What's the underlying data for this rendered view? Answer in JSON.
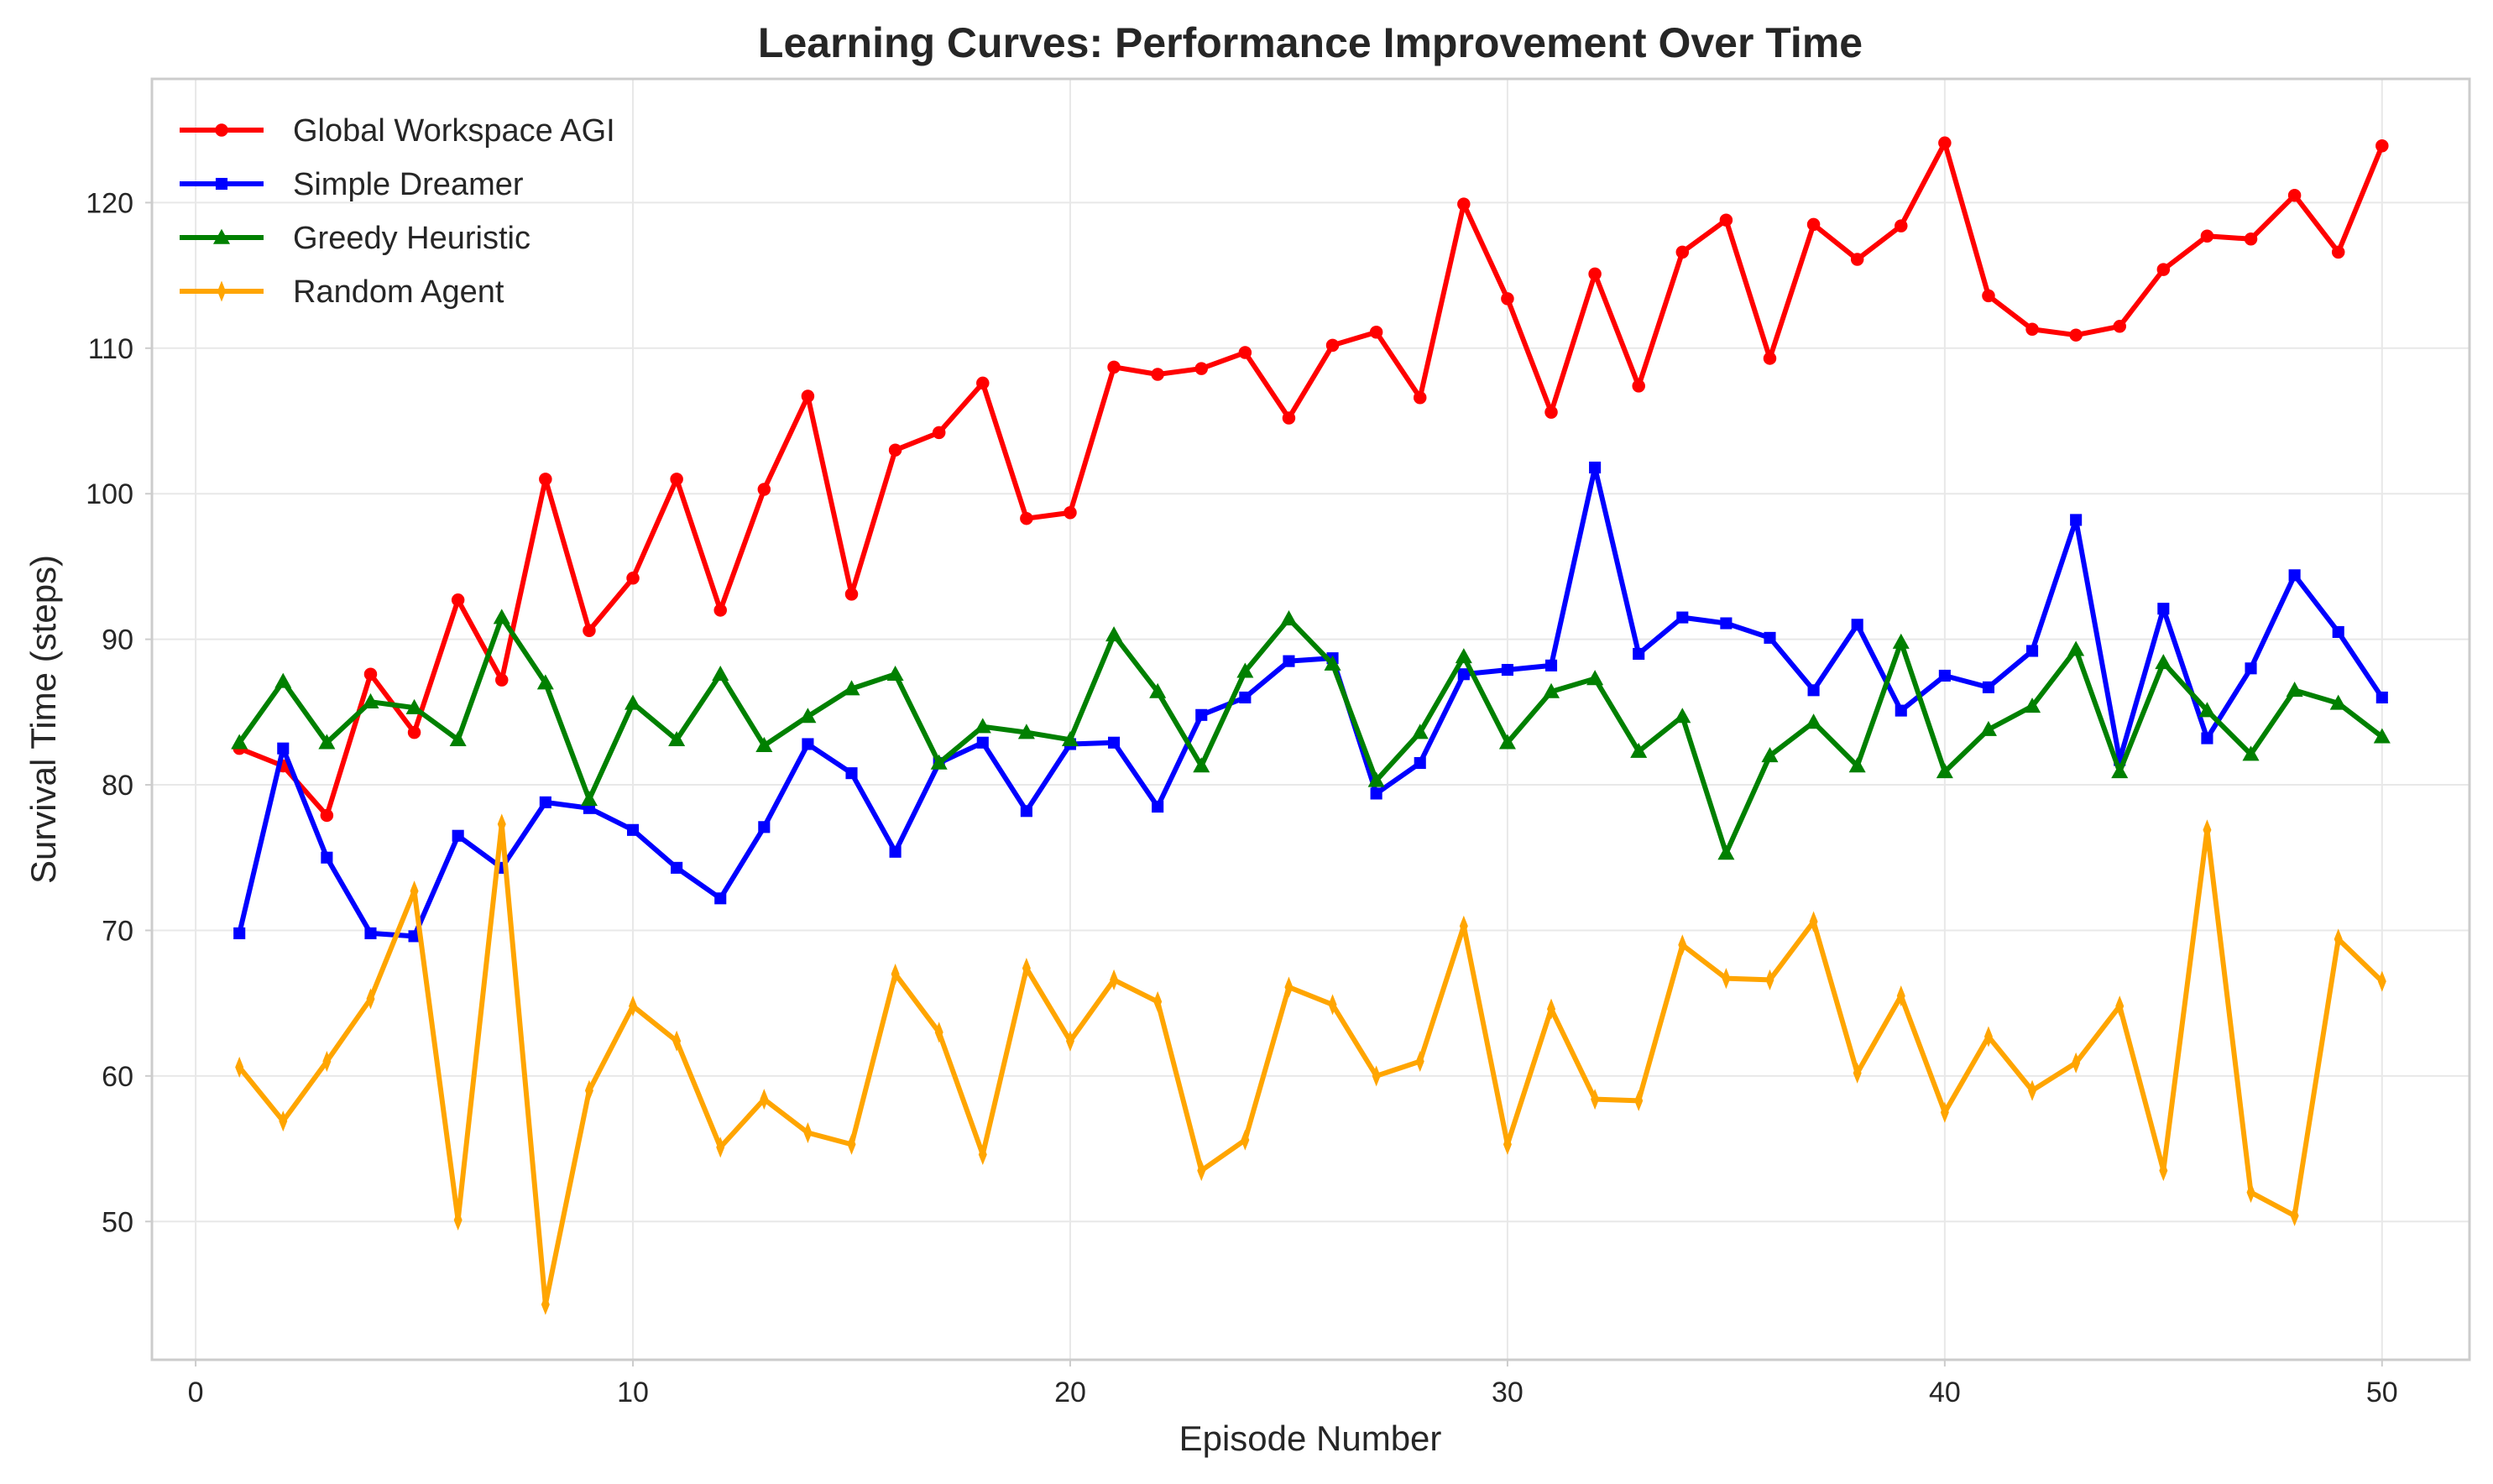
{
  "chart_data": {
    "type": "line",
    "title": "Learning Curves: Performance Improvement Over Time",
    "xlabel": "Episode Number",
    "ylabel": "Survival Time (steps)",
    "xlim": [
      -1,
      52
    ],
    "ylim": [
      40.5,
      128.5
    ],
    "xticks": [
      0,
      10,
      20,
      30,
      40,
      50
    ],
    "yticks": [
      50,
      60,
      70,
      80,
      90,
      100,
      110,
      120
    ],
    "grid": true,
    "legend_position": "top-left",
    "x": [
      1,
      2,
      3,
      4,
      5,
      6,
      7,
      8,
      9,
      10,
      11,
      12,
      13,
      14,
      15,
      16,
      17,
      18,
      19,
      20,
      21,
      22,
      23,
      24,
      25,
      26,
      27,
      28,
      29,
      30,
      31,
      32,
      33,
      34,
      35,
      36,
      37,
      38,
      39,
      40,
      41,
      42,
      43,
      44,
      45,
      46,
      47,
      48,
      49,
      50
    ],
    "series": [
      {
        "name": "Global Workspace AGI",
        "color": "#ff0000",
        "marker": "circle",
        "values": [
          82.5,
          81.3,
          77.9,
          87.6,
          83.6,
          92.7,
          87.2,
          101.0,
          90.6,
          94.2,
          101.0,
          92.0,
          100.3,
          106.7,
          93.1,
          103.0,
          104.2,
          107.6,
          98.3,
          98.7,
          108.7,
          108.2,
          108.6,
          109.7,
          105.2,
          110.2,
          111.1,
          106.6,
          119.9,
          113.4,
          105.6,
          115.1,
          107.4,
          116.6,
          118.8,
          109.3,
          118.5,
          116.1,
          118.4,
          124.1,
          113.6,
          111.3,
          110.9,
          111.5,
          115.4,
          117.7,
          117.5,
          120.5,
          116.6,
          123.9
        ]
      },
      {
        "name": "Simple Dreamer",
        "color": "#0000ff",
        "marker": "square",
        "values": [
          69.8,
          82.5,
          75.0,
          69.8,
          69.6,
          76.5,
          74.3,
          78.8,
          78.4,
          76.9,
          74.3,
          72.2,
          77.1,
          82.8,
          80.8,
          75.4,
          81.5,
          82.9,
          78.2,
          82.8,
          82.9,
          78.5,
          84.8,
          86.0,
          88.5,
          88.7,
          79.4,
          81.5,
          87.6,
          87.9,
          88.2,
          101.8,
          89.0,
          91.5,
          91.1,
          90.1,
          86.5,
          91.0,
          85.1,
          87.5,
          86.7,
          89.2,
          98.2,
          81.7,
          92.1,
          83.2,
          88.0,
          94.4,
          90.5,
          86.0
        ]
      },
      {
        "name": "Greedy Heuristic",
        "color": "#008000",
        "marker": "triangle",
        "values": [
          82.9,
          87.1,
          82.9,
          85.7,
          85.3,
          83.1,
          91.5,
          87.0,
          79.0,
          85.6,
          83.1,
          87.6,
          82.7,
          84.7,
          86.6,
          87.6,
          81.5,
          84.0,
          83.6,
          83.1,
          90.3,
          86.4,
          81.3,
          87.8,
          91.4,
          88.3,
          80.3,
          83.6,
          88.8,
          82.9,
          86.4,
          87.3,
          82.3,
          84.7,
          75.3,
          82.0,
          84.3,
          81.3,
          89.8,
          80.9,
          83.8,
          85.4,
          89.3,
          80.9,
          88.4,
          85.1,
          82.1,
          86.5,
          85.6,
          83.3
        ]
      },
      {
        "name": "Random Agent",
        "color": "#ffa500",
        "marker": "thin_diamond",
        "values": [
          60.6,
          56.9,
          61.0,
          65.3,
          72.7,
          50.1,
          77.3,
          44.3,
          59.0,
          64.8,
          62.4,
          55.1,
          58.4,
          56.1,
          55.3,
          67.0,
          63.0,
          54.6,
          67.4,
          62.4,
          66.6,
          65.1,
          53.5,
          55.6,
          66.1,
          64.9,
          60.0,
          61.0,
          70.3,
          55.3,
          64.6,
          58.4,
          58.3,
          69.0,
          66.7,
          66.6,
          70.6,
          60.2,
          65.5,
          57.5,
          62.7,
          59.0,
          60.9,
          64.8,
          53.5,
          76.9,
          52.0,
          50.4,
          69.4,
          66.5
        ]
      }
    ]
  }
}
